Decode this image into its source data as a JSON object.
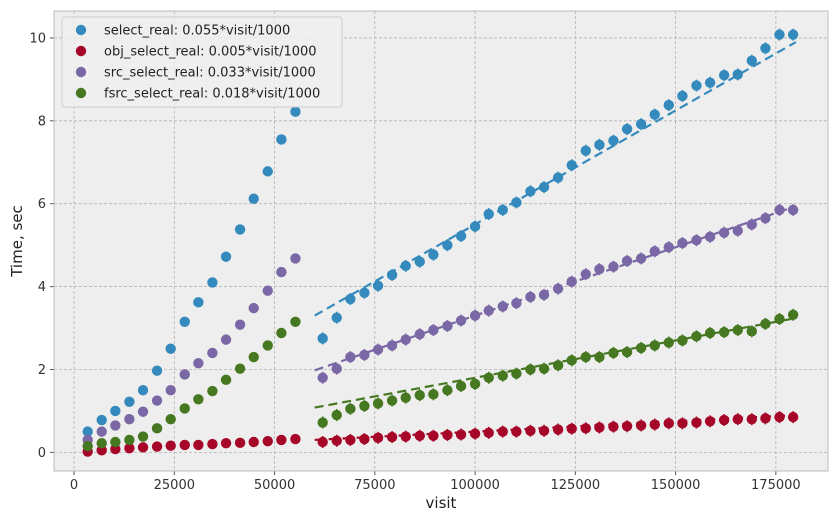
{
  "chart_data": {
    "type": "scatter",
    "xlabel": "visit",
    "ylabel": "Time, sec",
    "xlim": [
      -5000,
      188000
    ],
    "ylim": [
      -0.45,
      10.65
    ],
    "xticks": [
      0,
      25000,
      50000,
      75000,
      100000,
      125000,
      150000,
      175000
    ],
    "xtick_labels": [
      "0",
      "25000",
      "50000",
      "75000",
      "100000",
      "125000",
      "150000",
      "175000"
    ],
    "yticks": [
      0,
      2,
      4,
      6,
      8,
      10
    ],
    "ytick_labels": [
      "0",
      "2",
      "4",
      "6",
      "8",
      "10"
    ],
    "grid": true,
    "legend_position": "top-left",
    "series": [
      {
        "name": "select_real: 0.055*visit/1000",
        "color": "#348abd",
        "early": {
          "x": [
            3400,
            6900,
            10300,
            13800,
            17200,
            20700,
            24100,
            27600,
            31000,
            34500,
            37900,
            41400,
            44800,
            48300,
            51700,
            55200
          ],
          "y": [
            0.5,
            0.78,
            1.0,
            1.22,
            1.5,
            1.97,
            2.5,
            3.15,
            3.62,
            4.1,
            4.72,
            5.38,
            6.12,
            6.78,
            7.55,
            8.22
          ]
        },
        "late": {
          "x": [
            62000,
            65500,
            68900,
            72400,
            75800,
            79300,
            82700,
            86200,
            89600,
            93100,
            96500,
            100000,
            103400,
            106900,
            110300,
            113800,
            117200,
            120700,
            124100,
            127600,
            131000,
            134500,
            137900,
            141400,
            144800,
            148300,
            151700,
            155200,
            158600,
            162100,
            165500,
            169000,
            172400,
            175900,
            179300
          ],
          "y": [
            2.75,
            3.25,
            3.7,
            3.85,
            4.02,
            4.28,
            4.5,
            4.6,
            4.77,
            5.0,
            5.22,
            5.45,
            5.75,
            5.85,
            6.03,
            6.3,
            6.4,
            6.63,
            6.93,
            7.28,
            7.42,
            7.52,
            7.8,
            7.92,
            8.15,
            8.38,
            8.6,
            8.85,
            8.92,
            9.1,
            9.12,
            9.45,
            9.75,
            10.08,
            10.08
          ]
        },
        "fit": {
          "x": [
            60000,
            180000
          ],
          "y": [
            3.3,
            9.9
          ]
        }
      },
      {
        "name": "obj_select_real: 0.005*visit/1000",
        "color": "#a60628",
        "early": {
          "x": [
            3400,
            6900,
            10300,
            13800,
            17200,
            20700,
            24100,
            27600,
            31000,
            34500,
            37900,
            41400,
            44800,
            48300,
            51700,
            55200
          ],
          "y": [
            0.02,
            0.05,
            0.08,
            0.1,
            0.12,
            0.14,
            0.16,
            0.18,
            0.18,
            0.2,
            0.22,
            0.23,
            0.25,
            0.27,
            0.3,
            0.32
          ]
        },
        "late": {
          "x": [
            62000,
            65500,
            68900,
            72400,
            75800,
            79300,
            82700,
            86200,
            89600,
            93100,
            96500,
            100000,
            103400,
            106900,
            110300,
            113800,
            117200,
            120700,
            124100,
            127600,
            131000,
            134500,
            137900,
            141400,
            144800,
            148300,
            151700,
            155200,
            158600,
            162100,
            165500,
            169000,
            172400,
            175900,
            179300
          ],
          "y": [
            0.25,
            0.28,
            0.3,
            0.32,
            0.35,
            0.37,
            0.38,
            0.4,
            0.4,
            0.42,
            0.43,
            0.45,
            0.47,
            0.5,
            0.5,
            0.52,
            0.52,
            0.55,
            0.57,
            0.58,
            0.6,
            0.62,
            0.63,
            0.65,
            0.67,
            0.7,
            0.7,
            0.72,
            0.75,
            0.78,
            0.8,
            0.8,
            0.82,
            0.85,
            0.85
          ]
        },
        "fit": {
          "x": [
            60000,
            180000
          ],
          "y": [
            0.3,
            0.9
          ]
        }
      },
      {
        "name": "src_select_real: 0.033*visit/1000",
        "color": "#7a68a6",
        "early": {
          "x": [
            3400,
            6900,
            10300,
            13800,
            17200,
            20700,
            24100,
            27600,
            31000,
            34500,
            37900,
            41400,
            44800,
            48300,
            51700,
            55200
          ],
          "y": [
            0.3,
            0.5,
            0.65,
            0.8,
            0.98,
            1.25,
            1.5,
            1.88,
            2.15,
            2.4,
            2.72,
            3.08,
            3.48,
            3.9,
            4.35,
            4.68
          ]
        },
        "late": {
          "x": [
            62000,
            65500,
            68900,
            72400,
            75800,
            79300,
            82700,
            86200,
            89600,
            93100,
            96500,
            100000,
            103400,
            106900,
            110300,
            113800,
            117200,
            120700,
            124100,
            127600,
            131000,
            134500,
            137900,
            141400,
            144800,
            148300,
            151700,
            155200,
            158600,
            162100,
            165500,
            169000,
            172400,
            175900,
            179300
          ],
          "y": [
            1.8,
            2.02,
            2.3,
            2.35,
            2.48,
            2.58,
            2.72,
            2.85,
            2.95,
            3.05,
            3.18,
            3.3,
            3.42,
            3.52,
            3.6,
            3.75,
            3.8,
            3.95,
            4.12,
            4.3,
            4.42,
            4.48,
            4.62,
            4.68,
            4.85,
            4.95,
            5.05,
            5.12,
            5.2,
            5.3,
            5.35,
            5.5,
            5.65,
            5.85,
            5.85
          ]
        },
        "fit": {
          "x": [
            60000,
            180000
          ],
          "y": [
            1.98,
            5.94
          ]
        }
      },
      {
        "name": "fsrc_select_real: 0.018*visit/1000",
        "color": "#467821",
        "early": {
          "x": [
            3400,
            6900,
            10300,
            13800,
            17200,
            20700,
            24100,
            27600,
            31000,
            34500,
            37900,
            41400,
            44800,
            48300,
            51700,
            55200
          ],
          "y": [
            0.15,
            0.22,
            0.25,
            0.3,
            0.38,
            0.58,
            0.8,
            1.06,
            1.28,
            1.48,
            1.75,
            2.02,
            2.3,
            2.58,
            2.88,
            3.15
          ]
        },
        "late": {
          "x": [
            62000,
            65500,
            68900,
            72400,
            75800,
            79300,
            82700,
            86200,
            89600,
            93100,
            96500,
            100000,
            103400,
            106900,
            110300,
            113800,
            117200,
            120700,
            124100,
            127600,
            131000,
            134500,
            137900,
            141400,
            144800,
            148300,
            151700,
            155200,
            158600,
            162100,
            165500,
            169000,
            172400,
            175900,
            179300
          ],
          "y": [
            0.72,
            0.9,
            1.05,
            1.12,
            1.18,
            1.25,
            1.32,
            1.38,
            1.4,
            1.5,
            1.6,
            1.65,
            1.8,
            1.85,
            1.9,
            2.0,
            2.02,
            2.1,
            2.22,
            2.3,
            2.3,
            2.4,
            2.42,
            2.52,
            2.58,
            2.65,
            2.7,
            2.8,
            2.88,
            2.9,
            2.95,
            2.92,
            3.1,
            3.22,
            3.32
          ]
        },
        "fit": {
          "x": [
            60000,
            180000
          ],
          "y": [
            1.08,
            3.24
          ]
        }
      }
    ]
  }
}
